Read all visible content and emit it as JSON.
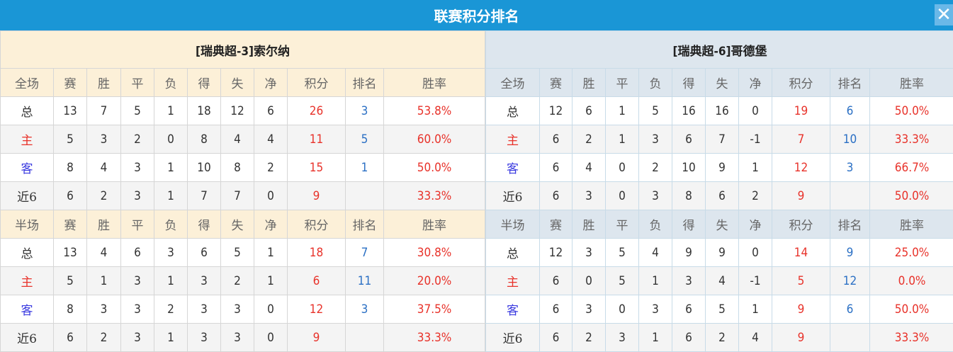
{
  "title": "联赛积分排名",
  "close_icon": "close-icon",
  "colors": {
    "header": "#1a96d6",
    "points": "#e8322a",
    "rank": "#2a6fc4"
  },
  "columns_tail": [
    "赛",
    "胜",
    "平",
    "负",
    "得",
    "失",
    "净",
    "积分",
    "排名",
    "胜率"
  ],
  "teams": [
    {
      "name": "[瑞典超-3]索尔纳",
      "sections": [
        {
          "label": "全场",
          "rows": [
            [
              "总",
              "13",
              "7",
              "5",
              "1",
              "18",
              "12",
              "6",
              "26",
              "3",
              "53.8%"
            ],
            [
              "主",
              "5",
              "3",
              "2",
              "0",
              "8",
              "4",
              "4",
              "11",
              "5",
              "60.0%"
            ],
            [
              "客",
              "8",
              "4",
              "3",
              "1",
              "10",
              "8",
              "2",
              "15",
              "1",
              "50.0%"
            ],
            [
              "近6",
              "6",
              "2",
              "3",
              "1",
              "7",
              "7",
              "0",
              "9",
              "",
              "33.3%"
            ]
          ]
        },
        {
          "label": "半场",
          "rows": [
            [
              "总",
              "13",
              "4",
              "6",
              "3",
              "6",
              "5",
              "1",
              "18",
              "7",
              "30.8%"
            ],
            [
              "主",
              "5",
              "1",
              "3",
              "1",
              "3",
              "2",
              "1",
              "6",
              "11",
              "20.0%"
            ],
            [
              "客",
              "8",
              "3",
              "3",
              "2",
              "3",
              "3",
              "0",
              "12",
              "3",
              "37.5%"
            ],
            [
              "近6",
              "6",
              "2",
              "3",
              "1",
              "3",
              "3",
              "0",
              "9",
              "",
              "33.3%"
            ]
          ]
        }
      ]
    },
    {
      "name": "[瑞典超-6]哥德堡",
      "sections": [
        {
          "label": "全场",
          "rows": [
            [
              "总",
              "12",
              "6",
              "1",
              "5",
              "16",
              "16",
              "0",
              "19",
              "6",
              "50.0%"
            ],
            [
              "主",
              "6",
              "2",
              "1",
              "3",
              "6",
              "7",
              "-1",
              "7",
              "10",
              "33.3%"
            ],
            [
              "客",
              "6",
              "4",
              "0",
              "2",
              "10",
              "9",
              "1",
              "12",
              "3",
              "66.7%"
            ],
            [
              "近6",
              "6",
              "3",
              "0",
              "3",
              "8",
              "6",
              "2",
              "9",
              "",
              "50.0%"
            ]
          ]
        },
        {
          "label": "半场",
          "rows": [
            [
              "总",
              "12",
              "3",
              "5",
              "4",
              "9",
              "9",
              "0",
              "14",
              "9",
              "25.0%"
            ],
            [
              "主",
              "6",
              "0",
              "5",
              "1",
              "3",
              "4",
              "-1",
              "5",
              "12",
              "0.0%"
            ],
            [
              "客",
              "6",
              "3",
              "0",
              "3",
              "6",
              "5",
              "1",
              "9",
              "6",
              "50.0%"
            ],
            [
              "近6",
              "6",
              "2",
              "3",
              "1",
              "6",
              "2",
              "4",
              "9",
              "",
              "33.3%"
            ]
          ]
        }
      ]
    }
  ]
}
